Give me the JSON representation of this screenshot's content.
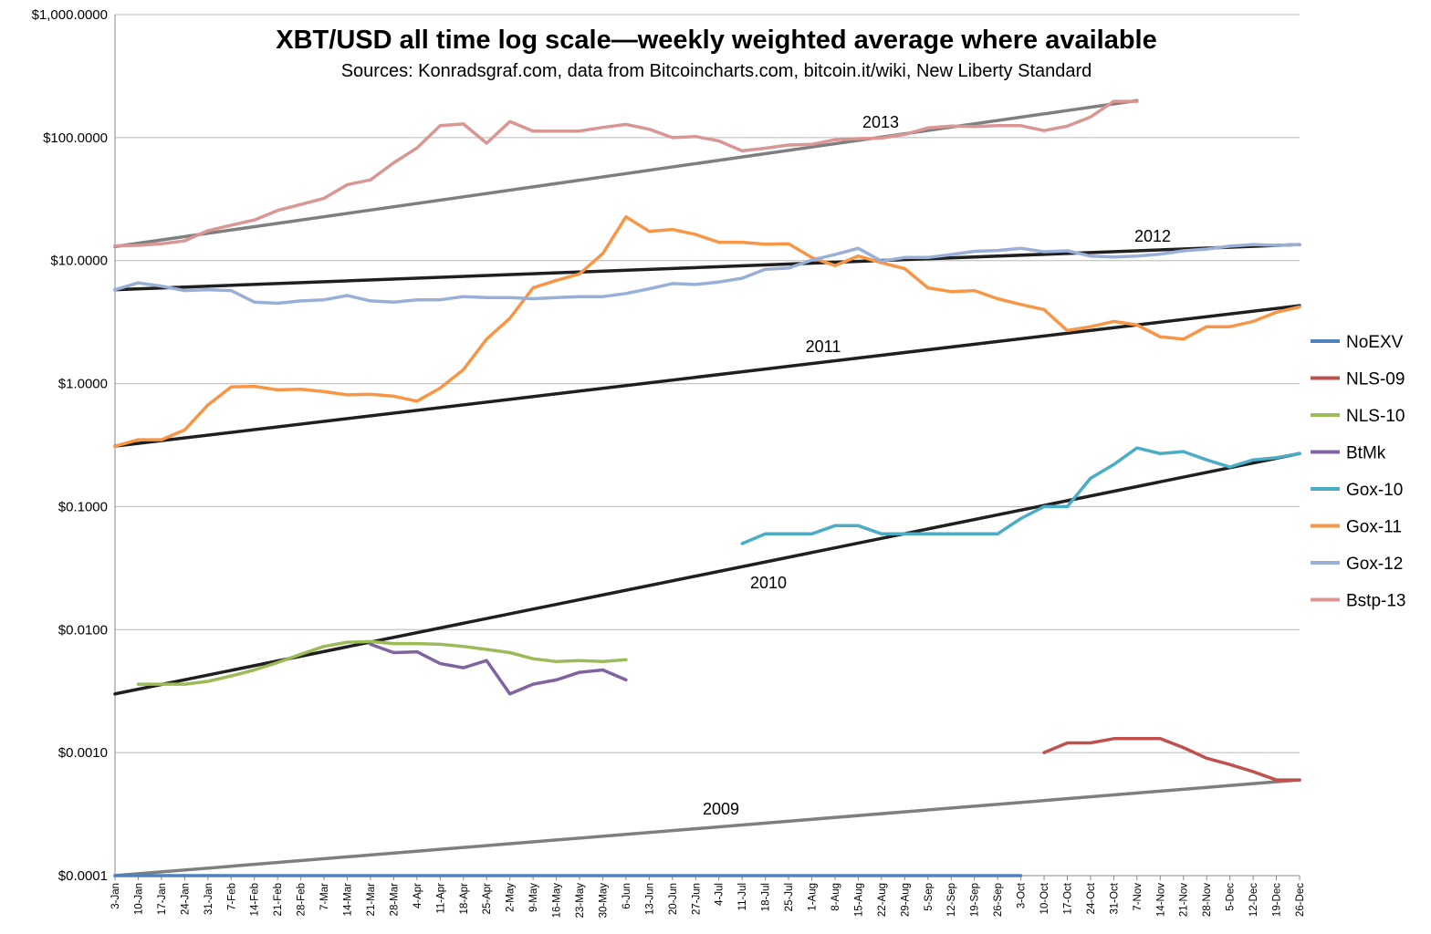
{
  "chart_data": {
    "type": "line",
    "title": "XBT/USD all time log scale—weekly weighted average where available",
    "subtitle": "Sources: Konradsgraf.com, data from Bitcoincharts.com, bitcoin.it/wiki, New Liberty Standard",
    "xlabel": "",
    "ylabel": "",
    "y_scale": "log",
    "ylim": [
      0.0001,
      1000
    ],
    "y_ticks": [
      {
        "value": 1000,
        "label": "$1,000.0000"
      },
      {
        "value": 100,
        "label": "$100.0000"
      },
      {
        "value": 10,
        "label": "$10.0000"
      },
      {
        "value": 1,
        "label": "$1.0000"
      },
      {
        "value": 0.1,
        "label": "$0.1000"
      },
      {
        "value": 0.01,
        "label": "$0.0100"
      },
      {
        "value": 0.001,
        "label": "$0.0010"
      },
      {
        "value": 0.0001,
        "label": "$0.0001"
      }
    ],
    "grid": true,
    "legend_position": "right",
    "categories": [
      "3-Jan",
      "10-Jan",
      "17-Jan",
      "24-Jan",
      "31-Jan",
      "7-Feb",
      "14-Feb",
      "21-Feb",
      "28-Feb",
      "7-Mar",
      "14-Mar",
      "21-Mar",
      "28-Mar",
      "4-Apr",
      "11-Apr",
      "18-Apr",
      "25-Apr",
      "2-May",
      "9-May",
      "16-May",
      "23-May",
      "30-May",
      "6-Jun",
      "13-Jun",
      "20-Jun",
      "27-Jun",
      "4-Jul",
      "11-Jul",
      "18-Jul",
      "25-Jul",
      "1-Aug",
      "8-Aug",
      "15-Aug",
      "22-Aug",
      "29-Aug",
      "5-Sep",
      "12-Sep",
      "19-Sep",
      "26-Sep",
      "3-Oct",
      "10-Oct",
      "17-Oct",
      "24-Oct",
      "31-Oct",
      "7-Nov",
      "14-Nov",
      "21-Nov",
      "28-Nov",
      "5-Dec",
      "12-Dec",
      "19-Dec",
      "26-Dec"
    ],
    "series": [
      {
        "name": "NoEXV",
        "color": "#4f81bd",
        "values": [
          0.0001,
          0.0001,
          0.0001,
          0.0001,
          0.0001,
          0.0001,
          0.0001,
          0.0001,
          0.0001,
          0.0001,
          0.0001,
          0.0001,
          0.0001,
          0.0001,
          0.0001,
          0.0001,
          0.0001,
          0.0001,
          0.0001,
          0.0001,
          0.0001,
          0.0001,
          0.0001,
          0.0001,
          0.0001,
          0.0001,
          0.0001,
          0.0001,
          0.0001,
          0.0001,
          0.0001,
          0.0001,
          0.0001,
          0.0001,
          0.0001,
          0.0001,
          0.0001,
          0.0001,
          0.0001,
          0.0001,
          null,
          null,
          null,
          null,
          null,
          null,
          null,
          null,
          null,
          null,
          null,
          null
        ]
      },
      {
        "name": "NLS-09",
        "color": "#c0504d",
        "values": [
          null,
          null,
          null,
          null,
          null,
          null,
          null,
          null,
          null,
          null,
          null,
          null,
          null,
          null,
          null,
          null,
          null,
          null,
          null,
          null,
          null,
          null,
          null,
          null,
          null,
          null,
          null,
          null,
          null,
          null,
          null,
          null,
          null,
          null,
          null,
          null,
          null,
          null,
          null,
          null,
          0.001,
          0.0012,
          0.0012,
          0.0013,
          0.0013,
          0.0013,
          0.0011,
          0.0009,
          0.0008,
          0.0007,
          0.0006,
          0.0006
        ]
      },
      {
        "name": "NLS-10",
        "color": "#9bbb59",
        "values": [
          null,
          0.0036,
          0.0036,
          0.0036,
          0.0038,
          0.0042,
          0.0047,
          0.0054,
          0.0063,
          0.0073,
          0.0079,
          0.008,
          0.0077,
          0.0077,
          0.0076,
          0.0073,
          0.0069,
          0.0065,
          0.0058,
          0.0055,
          0.0056,
          0.0055,
          0.0057,
          null,
          null,
          null,
          null,
          null,
          null,
          null,
          null,
          null,
          null,
          null,
          null,
          null,
          null,
          null,
          null,
          null,
          null,
          null,
          null,
          null,
          null,
          null,
          null,
          null,
          null,
          null,
          null,
          null
        ]
      },
      {
        "name": "BtMk",
        "color": "#8064a2",
        "values": [
          null,
          null,
          null,
          null,
          null,
          null,
          null,
          null,
          null,
          null,
          null,
          0.0076,
          0.0065,
          0.0066,
          0.0053,
          0.0049,
          0.0056,
          0.003,
          0.0036,
          0.0039,
          0.0045,
          0.0047,
          0.0039,
          null,
          null,
          null,
          null,
          null,
          null,
          null,
          null,
          null,
          null,
          null,
          null,
          null,
          null,
          null,
          null,
          null,
          null,
          null,
          null,
          null,
          null,
          null,
          null,
          null,
          null,
          null,
          null,
          null
        ]
      },
      {
        "name": "Gox-10",
        "color": "#4bacc6",
        "values": [
          null,
          null,
          null,
          null,
          null,
          null,
          null,
          null,
          null,
          null,
          null,
          null,
          null,
          null,
          null,
          null,
          null,
          null,
          null,
          null,
          null,
          null,
          null,
          null,
          null,
          null,
          null,
          0.05,
          0.06,
          0.06,
          0.06,
          0.07,
          0.07,
          0.06,
          0.06,
          0.06,
          0.06,
          0.06,
          0.06,
          0.08,
          0.1,
          0.1,
          0.17,
          0.22,
          0.3,
          0.27,
          0.28,
          0.24,
          0.21,
          0.24,
          0.25,
          0.27
        ]
      },
      {
        "name": "Gox-11",
        "color": "#f79646",
        "values": [
          0.31,
          0.35,
          0.35,
          0.42,
          0.67,
          0.94,
          0.95,
          0.89,
          0.9,
          0.86,
          0.81,
          0.82,
          0.79,
          0.72,
          0.92,
          1.3,
          2.3,
          3.4,
          6.0,
          6.9,
          7.8,
          11.4,
          22.7,
          17.3,
          17.9,
          16.3,
          14.1,
          14.1,
          13.6,
          13.7,
          10.6,
          9.1,
          10.9,
          9.6,
          8.6,
          6.0,
          5.6,
          5.7,
          4.9,
          4.4,
          4.0,
          2.7,
          2.9,
          3.2,
          3.0,
          2.4,
          2.3,
          2.9,
          2.9,
          3.2,
          3.8,
          4.2
        ]
      },
      {
        "name": "Gox-12",
        "color": "#9aafd8",
        "values": [
          5.8,
          6.6,
          6.2,
          5.7,
          5.8,
          5.7,
          4.6,
          4.5,
          4.7,
          4.8,
          5.2,
          4.7,
          4.6,
          4.8,
          4.8,
          5.1,
          5.0,
          5.0,
          4.9,
          5.0,
          5.1,
          5.1,
          5.4,
          5.9,
          6.5,
          6.4,
          6.7,
          7.2,
          8.5,
          8.7,
          10.1,
          11.2,
          12.6,
          9.9,
          10.6,
          10.6,
          11.2,
          11.9,
          12.1,
          12.6,
          11.8,
          12.0,
          10.9,
          10.7,
          10.9,
          11.3,
          12.0,
          12.4,
          13.1,
          13.5,
          13.3,
          13.5
        ]
      },
      {
        "name": "Bstp-13",
        "color": "#d99694",
        "values": [
          13.2,
          13.3,
          13.7,
          14.5,
          17.5,
          19.4,
          21.4,
          25.6,
          28.6,
          32.1,
          41.4,
          45.3,
          62.4,
          82.4,
          125,
          129,
          90,
          135,
          113,
          113,
          113,
          121,
          128,
          117,
          100,
          102,
          94,
          78,
          82,
          87,
          88,
          96,
          98,
          99,
          106,
          120,
          124,
          123,
          125,
          125,
          114,
          124,
          147,
          197,
          197,
          null,
          null,
          null,
          null,
          null,
          null,
          null
        ]
      }
    ],
    "trendlines": [
      {
        "label": "2013",
        "color": "#7f7f7f",
        "from": {
          "x": "3-Jan",
          "y": 13
        },
        "to": {
          "x": "7-Nov",
          "y": 200
        }
      },
      {
        "label": "2012",
        "color": "#1f1f1f",
        "from": {
          "x": "3-Jan",
          "y": 5.8
        },
        "to": {
          "x": "26-Dec",
          "y": 13.5
        }
      },
      {
        "label": "2011",
        "color": "#1f1f1f",
        "from": {
          "x": "3-Jan",
          "y": 0.31
        },
        "to": {
          "x": "26-Dec",
          "y": 4.3
        }
      },
      {
        "label": "2010",
        "color": "#1f1f1f",
        "from": {
          "x": "3-Jan",
          "y": 0.003
        },
        "to": {
          "x": "26-Dec",
          "y": 0.27
        }
      },
      {
        "label": "2009",
        "color": "#7f7f7f",
        "from": {
          "x": "3-Jan",
          "y": 0.0001
        },
        "to": {
          "x": "26-Dec",
          "y": 0.0006
        }
      }
    ]
  }
}
